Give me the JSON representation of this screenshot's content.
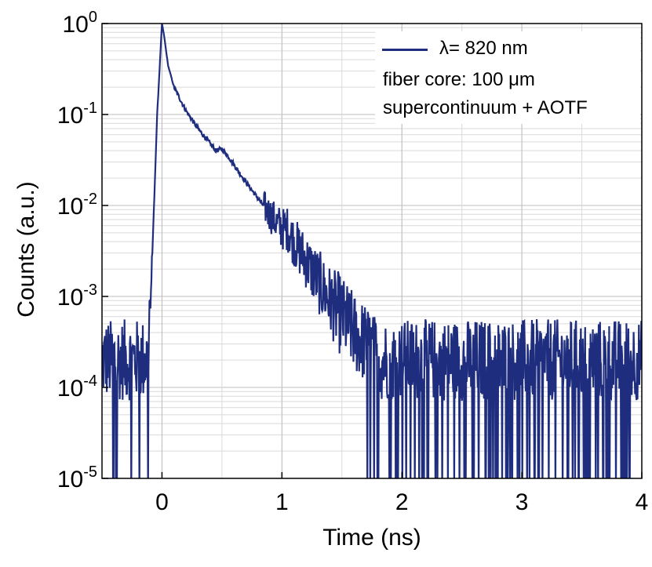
{
  "chart_data": {
    "type": "line",
    "xlabel": "Time (ns)",
    "ylabel": "Counts (a.u.)",
    "xlim": [
      -0.5,
      4
    ],
    "ylim": [
      1e-05,
      1
    ],
    "yscale": "log",
    "grid": true,
    "x_ticks": [
      "0",
      "1",
      "2",
      "3",
      "4"
    ],
    "x_tick_values": [
      0,
      1,
      2,
      3,
      4
    ],
    "y_ticks": [
      {
        "base": "10",
        "exp": "0",
        "value": 1
      },
      {
        "base": "10",
        "exp": "-1",
        "value": 0.1
      },
      {
        "base": "10",
        "exp": "-2",
        "value": 0.01
      },
      {
        "base": "10",
        "exp": "-3",
        "value": 0.001
      },
      {
        "base": "10",
        "exp": "-4",
        "value": 0.0001
      },
      {
        "base": "10",
        "exp": "-5",
        "value": 1e-05
      }
    ],
    "legend_position": "top-right",
    "series": [
      {
        "name": "λ= 820 nm",
        "color": "#1f2d7e",
        "x": [
          -0.5,
          -0.3,
          -0.2,
          -0.12,
          -0.08,
          -0.04,
          0.0,
          0.02,
          0.05,
          0.1,
          0.2,
          0.3,
          0.45,
          0.5,
          0.55,
          0.7,
          0.9,
          1.0,
          1.05,
          1.1,
          1.2,
          1.3,
          1.4,
          1.5,
          1.6,
          1.7,
          1.8,
          2.0,
          2.5,
          3.0,
          3.5,
          4.0
        ],
        "y": [
          0.0002,
          0.0002,
          0.0002,
          0.0002,
          0.003,
          0.1,
          1.0,
          0.7,
          0.35,
          0.2,
          0.11,
          0.07,
          0.04,
          0.042,
          0.035,
          0.018,
          0.008,
          0.0055,
          0.0055,
          0.004,
          0.0025,
          0.0015,
          0.0009,
          0.0006,
          0.0004,
          0.0003,
          0.0002,
          0.0002,
          0.0002,
          0.0002,
          0.0002,
          0.0002
        ]
      }
    ],
    "annotations": [
      "fiber core: 100 μm",
      "supercontinuum + AOTF"
    ]
  }
}
